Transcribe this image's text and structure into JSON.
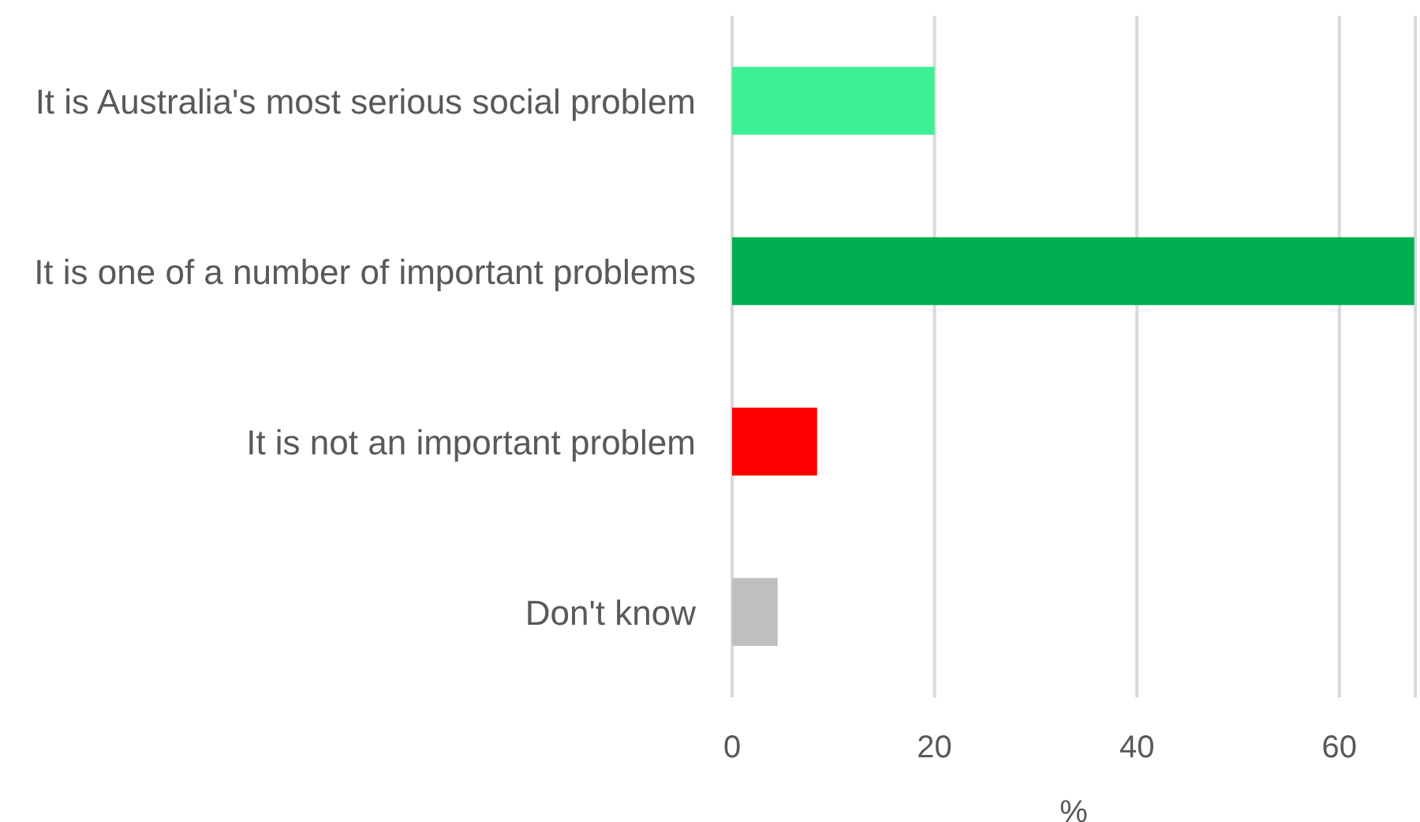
{
  "chart_data": {
    "type": "bar",
    "orientation": "horizontal",
    "xlabel": "%",
    "categories": [
      "It is Australia's most serious social problem",
      "It is one of a number of important problems",
      "It is not an important problem",
      "Don't know"
    ],
    "values": [
      20,
      67.4,
      8.4,
      4.5
    ],
    "colors": [
      "#3df094",
      "#00b050",
      "#ff0000",
      "#bfbfbf"
    ],
    "xlim": [
      0,
      67.5
    ],
    "xticks": [
      0,
      20,
      40,
      60
    ],
    "grid": "x"
  }
}
